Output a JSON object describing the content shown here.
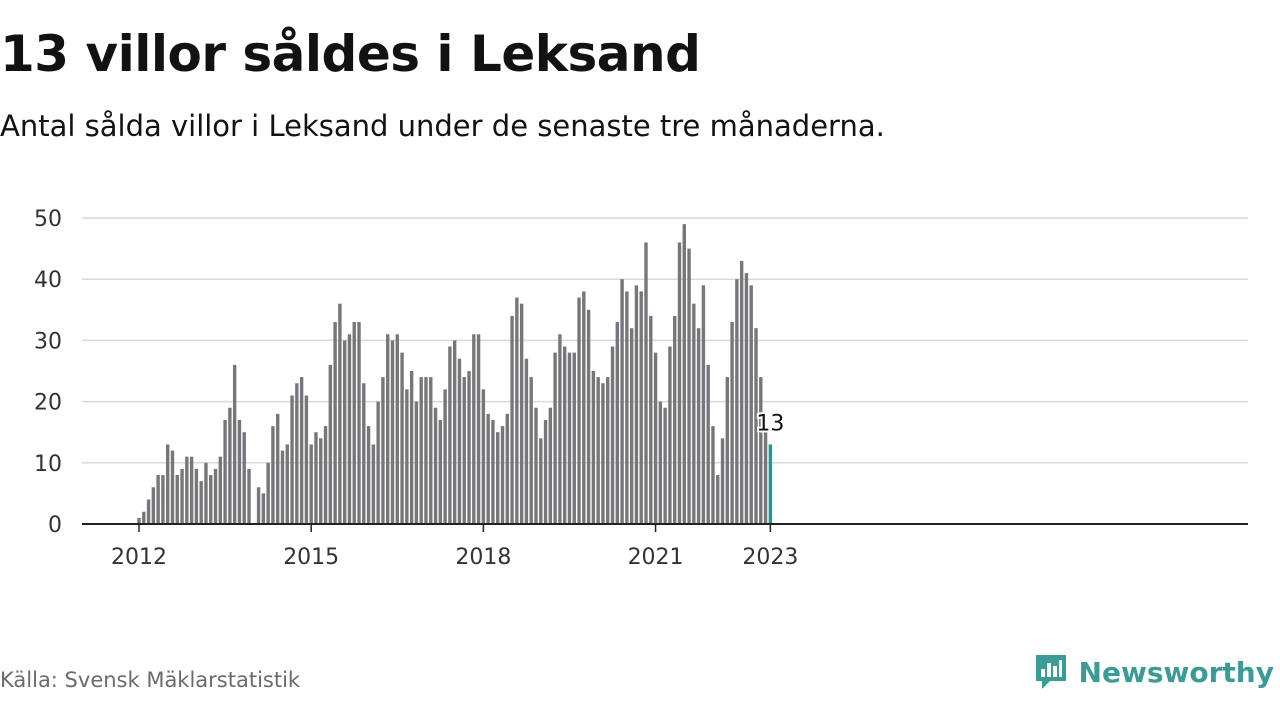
{
  "header": {
    "title": "13 villor såldes i Leksand",
    "subtitle": "Antal sålda villor i Leksand under de senaste tre månaderna."
  },
  "footer": {
    "source": "Källa: Svensk Mäklarstatistik",
    "brand": "Newsworthy",
    "brand_icon": "newsworthy-logo-icon"
  },
  "colors": {
    "bar": "#77777b",
    "highlight": "#1a9a99",
    "grid": "#d9d9d9",
    "axis": "#222222",
    "brand": "#3b9b96"
  },
  "chart_data": {
    "type": "bar",
    "x_start": "2012-01",
    "x_end": "2023-01",
    "interval": "monthly",
    "xticks": [
      "2012",
      "2015",
      "2018",
      "2021",
      "2023"
    ],
    "yticks": [
      0,
      10,
      20,
      30,
      40,
      50
    ],
    "ylim": [
      0,
      50
    ],
    "grid": true,
    "highlight_label": "13",
    "values": [
      1,
      2,
      4,
      6,
      8,
      8,
      13,
      12,
      8,
      9,
      11,
      11,
      9,
      7,
      10,
      8,
      9,
      11,
      17,
      19,
      26,
      17,
      15,
      9,
      null,
      6,
      5,
      10,
      16,
      18,
      12,
      13,
      21,
      23,
      24,
      21,
      13,
      15,
      14,
      16,
      26,
      33,
      36,
      30,
      31,
      33,
      33,
      23,
      16,
      13,
      20,
      24,
      31,
      30,
      31,
      28,
      22,
      25,
      20,
      24,
      24,
      24,
      19,
      17,
      22,
      29,
      30,
      27,
      24,
      25,
      31,
      31,
      22,
      18,
      17,
      15,
      16,
      18,
      34,
      37,
      36,
      27,
      24,
      19,
      14,
      17,
      19,
      28,
      31,
      29,
      28,
      28,
      37,
      38,
      35,
      25,
      24,
      23,
      24,
      29,
      33,
      40,
      38,
      32,
      39,
      38,
      46,
      34,
      28,
      20,
      19,
      29,
      34,
      46,
      49,
      45,
      36,
      32,
      39,
      26,
      16,
      8,
      14,
      24,
      33,
      40,
      43,
      41,
      39,
      32,
      24,
      15,
      13
    ]
  }
}
